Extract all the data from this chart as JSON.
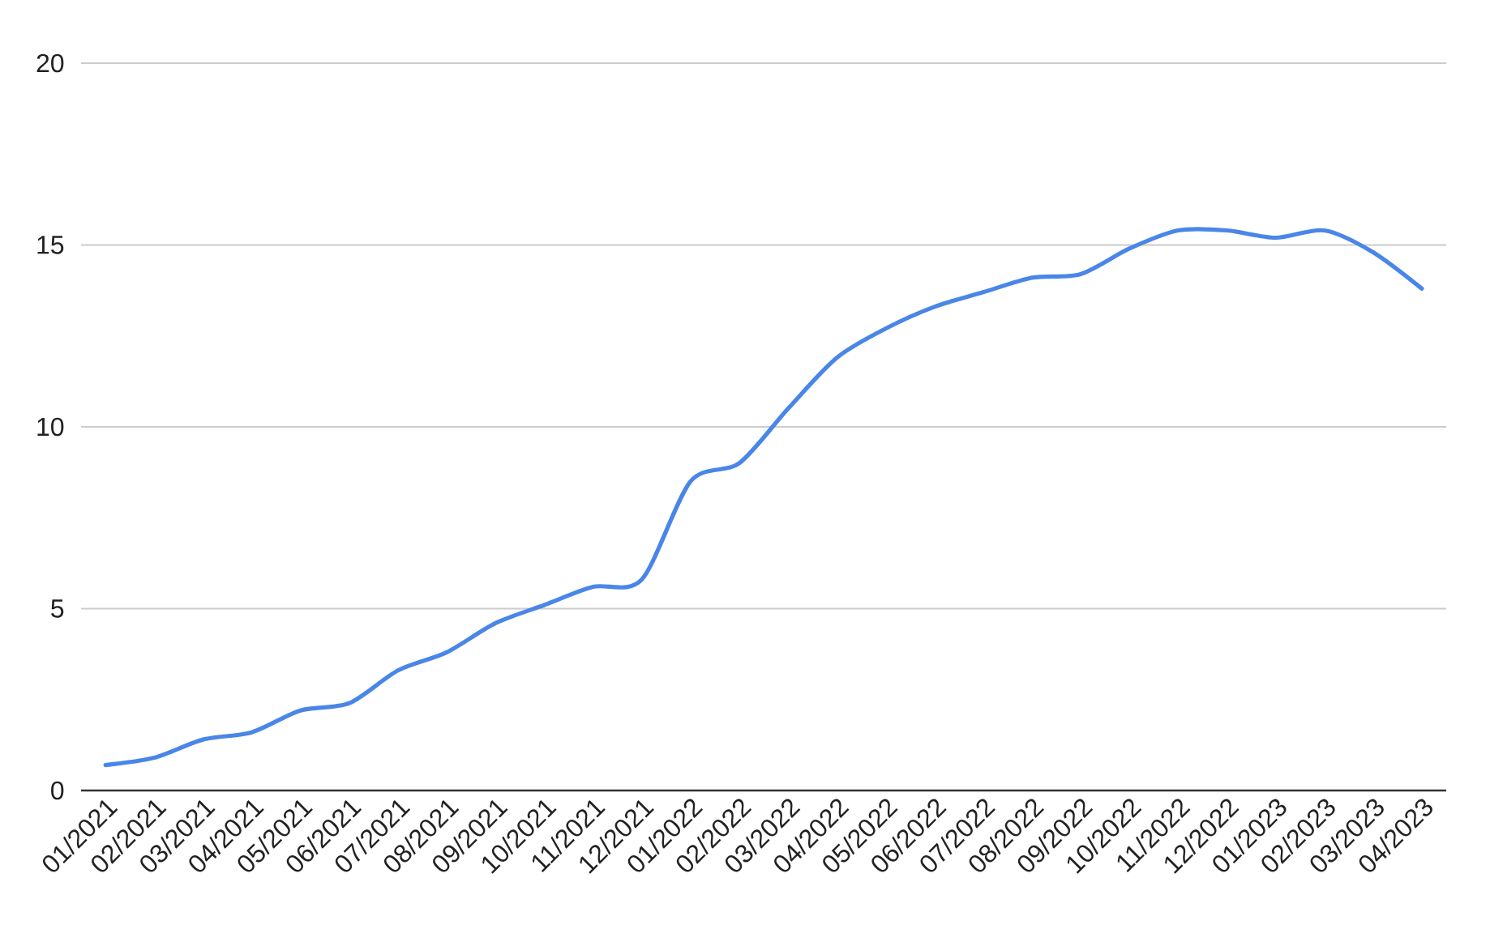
{
  "chart_data": {
    "type": "line",
    "categories": [
      "01/2021",
      "02/2021",
      "03/2021",
      "04/2021",
      "05/2021",
      "06/2021",
      "07/2021",
      "08/2021",
      "09/2021",
      "10/2021",
      "11/2021",
      "12/2021",
      "01/2022",
      "02/2022",
      "03/2022",
      "04/2022",
      "05/2022",
      "06/2022",
      "07/2022",
      "08/2022",
      "09/2022",
      "10/2022",
      "11/2022",
      "12/2022",
      "01/2023",
      "02/2023",
      "03/2023",
      "04/2023"
    ],
    "series": [
      {
        "color": "#4a86e8",
        "values": [
          0.7,
          0.9,
          1.4,
          1.6,
          2.2,
          2.4,
          3.3,
          3.8,
          4.6,
          5.1,
          5.6,
          5.8,
          8.5,
          9.0,
          10.5,
          11.9,
          12.7,
          13.3,
          13.7,
          14.1,
          14.2,
          14.9,
          15.4,
          15.4,
          15.2,
          15.4,
          14.8,
          13.8
        ]
      }
    ],
    "ylim": [
      0,
      20
    ],
    "yticks": [
      0,
      5,
      10,
      15,
      20
    ],
    "grid": "y"
  }
}
